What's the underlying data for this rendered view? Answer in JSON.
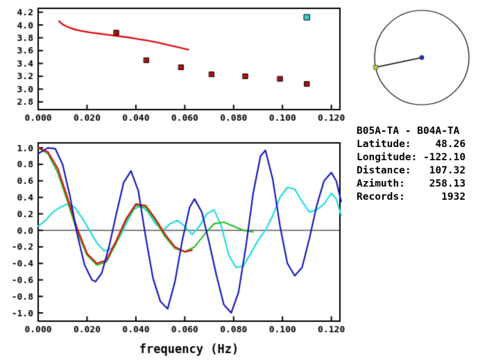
{
  "info": {
    "title": "B05A-TA - B04A-TA",
    "rows": [
      {
        "label": "Latitude:",
        "value": "48.26"
      },
      {
        "label": "Longitude:",
        "value": "-122.10"
      },
      {
        "label": "Distance:",
        "value": "107.32"
      },
      {
        "label": "Azimuth:",
        "value": "258.13"
      },
      {
        "label": "Records:",
        "value": "1932"
      }
    ]
  },
  "chart_data": [
    {
      "id": "phase-velocity-dispersion",
      "type": "line",
      "title": "",
      "xlabel": "",
      "ylabel": "",
      "xlim": [
        0,
        0.1235
      ],
      "ylim": [
        2.68,
        4.26
      ],
      "grid": false,
      "xticks": [
        0.0,
        0.02,
        0.04,
        0.06,
        0.08,
        0.1,
        0.12
      ],
      "xtick_labels": [
        "0.000",
        "0.020",
        "0.040",
        "0.060",
        "0.080",
        "0.100",
        "0.120"
      ],
      "yticks": [
        2.8,
        3.0,
        3.2,
        3.4,
        3.6,
        3.8,
        4.0,
        4.2
      ],
      "ytick_labels": [
        "2.8",
        "3.0",
        "3.2",
        "3.4",
        "3.6",
        "3.8",
        "4.0",
        "4.2"
      ],
      "series": [
        {
          "name": "model-dispersion-curve",
          "kind": "line",
          "color": "#dd1111",
          "width": 2.4,
          "x": [
            0.0085,
            0.01,
            0.012,
            0.015,
            0.018,
            0.021,
            0.025,
            0.029,
            0.033,
            0.037,
            0.041,
            0.045,
            0.049,
            0.053,
            0.057,
            0.0615
          ],
          "y": [
            4.06,
            4.01,
            3.97,
            3.93,
            3.905,
            3.885,
            3.865,
            3.845,
            3.825,
            3.805,
            3.78,
            3.755,
            3.725,
            3.69,
            3.655,
            3.615
          ]
        },
        {
          "name": "measured-phase-velocity-points",
          "kind": "square",
          "color": "#aa1111",
          "edge": "#000000",
          "size": 7,
          "x": [
            0.032,
            0.0443,
            0.0585,
            0.071,
            0.0848,
            0.099,
            0.11
          ],
          "y": [
            3.88,
            3.45,
            3.34,
            3.23,
            3.2,
            3.16,
            3.08
          ]
        },
        {
          "name": "highlight-point",
          "kind": "square",
          "color": "#33cccc",
          "edge": "#000000",
          "size": 8,
          "x": [
            0.11
          ],
          "y": [
            4.12
          ]
        }
      ]
    },
    {
      "id": "cross-spectrum-waveforms",
      "type": "line",
      "title": "",
      "xlabel": "frequency (Hz)",
      "ylabel": "",
      "xlim": [
        0,
        0.1235
      ],
      "ylim": [
        -1.1,
        1.06
      ],
      "grid": false,
      "zero_line": true,
      "xticks": [
        0.0,
        0.02,
        0.04,
        0.06,
        0.08,
        0.1,
        0.12
      ],
      "xtick_labels": [
        "0.000",
        "0.020",
        "0.040",
        "0.060",
        "0.080",
        "0.100",
        "0.120"
      ],
      "yticks": [
        -1.0,
        -0.8,
        -0.6,
        -0.4,
        -0.2,
        0.0,
        0.2,
        0.4,
        0.6,
        0.8,
        1.0
      ],
      "ytick_labels": [
        "-1.0",
        "-0.8",
        "-0.6",
        "-0.4",
        "-0.2",
        "0.0",
        "0.2",
        "0.4",
        "0.6",
        "0.8",
        "1.0"
      ],
      "series": [
        {
          "name": "cyan-spectrum-trace",
          "kind": "line",
          "color": "#22dddd",
          "width": 2.2,
          "x": [
            0.0,
            0.003,
            0.006,
            0.009,
            0.012,
            0.015,
            0.018,
            0.021,
            0.024,
            0.027,
            0.03,
            0.033,
            0.036,
            0.039,
            0.042,
            0.045,
            0.048,
            0.051,
            0.054,
            0.057,
            0.06,
            0.063,
            0.066,
            0.069,
            0.072,
            0.075,
            0.078,
            0.081,
            0.084,
            0.087,
            0.09,
            0.093,
            0.096,
            0.099,
            0.102,
            0.105,
            0.108,
            0.111,
            0.114,
            0.117,
            0.12,
            0.122,
            0.124
          ],
          "y": [
            0.05,
            0.12,
            0.22,
            0.28,
            0.32,
            0.28,
            0.15,
            0.0,
            -0.15,
            -0.25,
            -0.22,
            -0.1,
            0.08,
            0.25,
            0.3,
            0.22,
            0.08,
            0.0,
            0.08,
            0.12,
            0.05,
            -0.05,
            0.05,
            0.2,
            0.25,
            0.05,
            -0.3,
            -0.45,
            -0.43,
            -0.28,
            -0.12,
            0.0,
            0.18,
            0.4,
            0.52,
            0.5,
            0.35,
            0.22,
            0.25,
            0.32,
            0.45,
            0.38,
            0.18
          ]
        },
        {
          "name": "green-model-trace",
          "kind": "line",
          "color": "#2dbb2d",
          "width": 2.2,
          "x": [
            0.0,
            0.004,
            0.008,
            0.012,
            0.016,
            0.02,
            0.024,
            0.028,
            0.032,
            0.036,
            0.04,
            0.044,
            0.048,
            0.052,
            0.056,
            0.06,
            0.064,
            0.068,
            0.072,
            0.076,
            0.08,
            0.084,
            0.088
          ],
          "y": [
            1.0,
            0.93,
            0.7,
            0.35,
            -0.02,
            -0.3,
            -0.42,
            -0.38,
            -0.15,
            0.12,
            0.3,
            0.28,
            0.12,
            -0.08,
            -0.22,
            -0.26,
            -0.2,
            -0.05,
            0.08,
            0.1,
            0.05,
            0.0,
            -0.02
          ]
        },
        {
          "name": "red-model-trace",
          "kind": "line",
          "color": "#dd1111",
          "width": 2.2,
          "x": [
            0.0,
            0.004,
            0.008,
            0.012,
            0.016,
            0.02,
            0.024,
            0.028,
            0.032,
            0.036,
            0.04,
            0.044,
            0.048,
            0.052,
            0.056,
            0.06,
            0.063
          ],
          "y": [
            1.0,
            0.95,
            0.75,
            0.4,
            0.02,
            -0.28,
            -0.4,
            -0.36,
            -0.12,
            0.14,
            0.32,
            0.3,
            0.14,
            -0.05,
            -0.2,
            -0.26,
            -0.24
          ]
        },
        {
          "name": "blue-data-trace",
          "kind": "line",
          "color": "#1a1ab8",
          "width": 2.2,
          "x": [
            0.0,
            0.004,
            0.007,
            0.01,
            0.013,
            0.016,
            0.019,
            0.022,
            0.0235,
            0.026,
            0.029,
            0.032,
            0.035,
            0.038,
            0.041,
            0.044,
            0.047,
            0.05,
            0.053,
            0.056,
            0.059,
            0.062,
            0.064,
            0.067,
            0.07,
            0.073,
            0.076,
            0.079,
            0.082,
            0.085,
            0.088,
            0.091,
            0.093,
            0.096,
            0.099,
            0.102,
            0.105,
            0.108,
            0.111,
            0.114,
            0.117,
            0.12,
            0.122,
            0.124
          ],
          "y": [
            0.93,
            1.0,
            0.99,
            0.8,
            0.42,
            -0.05,
            -0.42,
            -0.6,
            -0.62,
            -0.52,
            -0.2,
            0.2,
            0.58,
            0.72,
            0.48,
            -0.08,
            -0.58,
            -0.86,
            -0.95,
            -0.62,
            -0.12,
            0.28,
            0.38,
            0.22,
            -0.15,
            -0.55,
            -0.9,
            -1.0,
            -0.75,
            -0.2,
            0.45,
            0.9,
            0.97,
            0.62,
            0.05,
            -0.4,
            -0.55,
            -0.45,
            -0.1,
            0.3,
            0.6,
            0.7,
            0.6,
            0.35
          ]
        }
      ]
    },
    {
      "id": "station-azimuth-circle",
      "type": "direction-circle",
      "azimuth_deg": 258.13,
      "circle_color": "#000000",
      "line_color": "#000000",
      "center_dot_color": "#223399",
      "endpoint_color": "#cccc55",
      "endpoint_edge_color": "#556600"
    }
  ]
}
